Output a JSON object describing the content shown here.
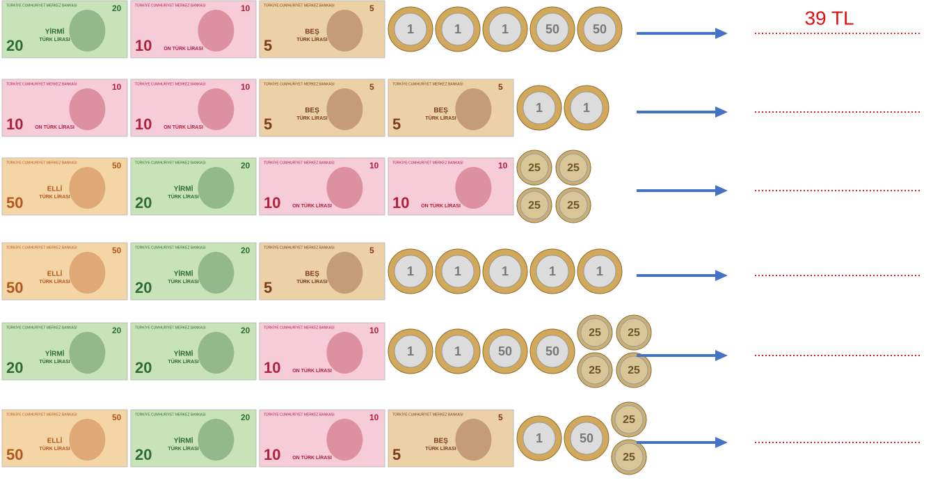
{
  "bank": "TÜRKİYE CUMHURİYET MERKEZ BANKASI",
  "rows": [
    {
      "items": [
        {
          "numeral": "20",
          "words": "YİRMİ",
          "currency": "TÜRK LİRASI"
        },
        {
          "numeral": "10",
          "currency": "ON TÜRK LİRASI"
        },
        {
          "numeral": "5",
          "words": "BEŞ",
          "currency": "TÜRK LİRASI"
        },
        {
          "numeral": "1"
        },
        {
          "numeral": "1"
        },
        {
          "numeral": "1"
        },
        {
          "numeral": "50"
        },
        {
          "numeral": "50"
        }
      ],
      "answer": "39 TL"
    },
    {
      "items": [
        {
          "numeral": "10",
          "currency": "ON TÜRK LİRASI"
        },
        {
          "numeral": "10",
          "currency": "ON TÜRK LİRASI"
        },
        {
          "numeral": "5",
          "words": "BEŞ",
          "currency": "TÜRK LİRASI"
        },
        {
          "numeral": "5",
          "words": "BEŞ",
          "currency": "TÜRK LİRASI"
        },
        {
          "numeral": "1"
        },
        {
          "numeral": "1"
        }
      ]
    },
    {
      "items": [
        {
          "numeral": "50",
          "words": "ELLİ",
          "currency": "TÜRK LİRASI"
        },
        {
          "numeral": "20",
          "words": "YİRMİ",
          "currency": "TÜRK LİRASI"
        },
        {
          "numeral": "10",
          "currency": "ON TÜRK LİRASI"
        },
        {
          "numeral": "10",
          "currency": "ON TÜRK LİRASI"
        },
        {
          "numeral": "25"
        },
        {
          "numeral": "25"
        },
        {
          "numeral": "25"
        },
        {
          "numeral": "25"
        }
      ]
    },
    {
      "items": [
        {
          "numeral": "50",
          "words": "ELLİ",
          "currency": "TÜRK LİRASI"
        },
        {
          "numeral": "20",
          "words": "YİRMİ",
          "currency": "TÜRK LİRASI"
        },
        {
          "numeral": "5",
          "words": "BEŞ",
          "currency": "TÜRK LİRASI"
        },
        {
          "numeral": "1"
        },
        {
          "numeral": "1"
        },
        {
          "numeral": "1"
        },
        {
          "numeral": "1"
        },
        {
          "numeral": "1"
        }
      ]
    },
    {
      "items": [
        {
          "numeral": "20",
          "words": "YİRMİ",
          "currency": "TÜRK LİRASI"
        },
        {
          "numeral": "20",
          "words": "YİRMİ",
          "currency": "TÜRK LİRASI"
        },
        {
          "numeral": "10",
          "currency": "ON TÜRK LİRASI"
        },
        {
          "numeral": "1"
        },
        {
          "numeral": "1"
        },
        {
          "numeral": "50"
        },
        {
          "numeral": "50"
        },
        {
          "numeral": "25"
        },
        {
          "numeral": "25"
        },
        {
          "numeral": "25"
        },
        {
          "numeral": "25"
        }
      ]
    },
    {
      "items": [
        {
          "numeral": "50",
          "words": "ELLİ",
          "currency": "TÜRK LİRASI"
        },
        {
          "numeral": "20",
          "words": "YİRMİ",
          "currency": "TÜRK LİRASI"
        },
        {
          "numeral": "10",
          "currency": "ON TÜRK LİRASI"
        },
        {
          "numeral": "5",
          "words": "BEŞ",
          "currency": "TÜRK LİRASI"
        },
        {
          "numeral": "1"
        },
        {
          "numeral": "50"
        },
        {
          "numeral": "25"
        },
        {
          "numeral": "25"
        }
      ]
    }
  ]
}
